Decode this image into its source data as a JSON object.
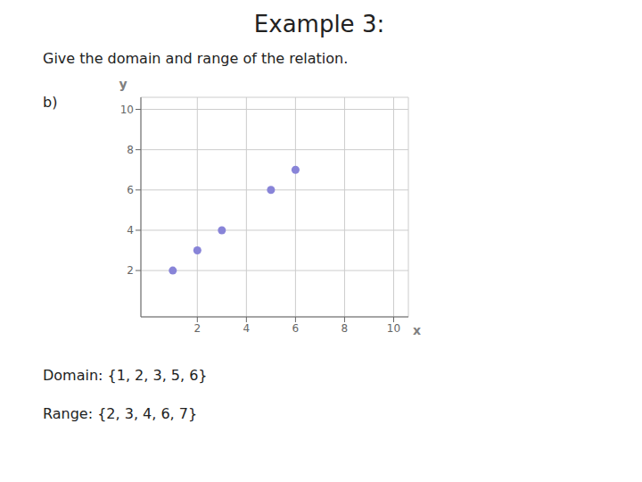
{
  "chart_data": {
    "type": "scatter",
    "title": "Example 3:",
    "subtitle": "Give the domain and range of the relation.",
    "annotations": [
      "b)",
      "Domain: {1, 2, 3, 5, 6}",
      "Range: {2, 3, 4, 6, 7}"
    ],
    "x_label": "x",
    "y_label": "y",
    "x": [
      1,
      2,
      3,
      5,
      6
    ],
    "values": [
      2,
      3,
      4,
      6,
      7
    ],
    "xlim": [
      -0.3,
      10.6
    ],
    "ylim": [
      -0.3,
      10.6
    ],
    "xticks": [
      2,
      4,
      6,
      8,
      10
    ],
    "yticks": [
      2,
      4,
      6,
      8,
      10
    ],
    "grid": true
  }
}
